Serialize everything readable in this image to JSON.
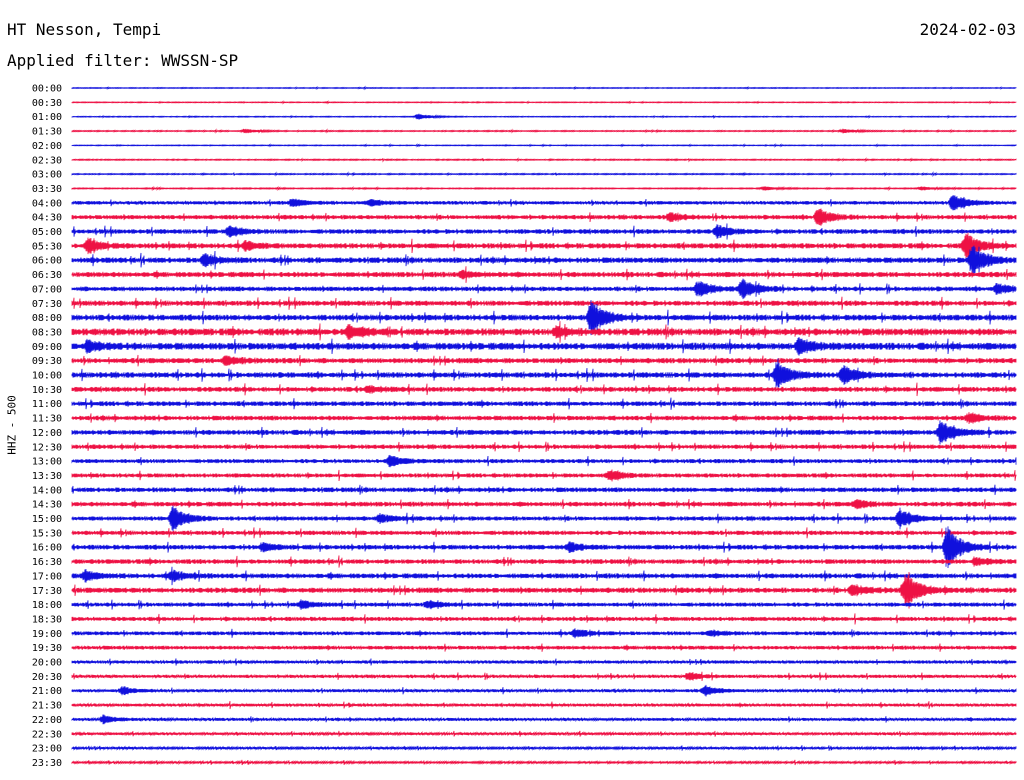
{
  "header": {
    "station": "HT Nesson, Tempi",
    "date": "2024-02-03",
    "filter": "Applied filter: WWSSN-SP"
  },
  "colors": {
    "line_a": "#1010dd",
    "line_b": "#ee1144"
  },
  "chart_data": {
    "type": "line",
    "title": "HT Nesson, Tempi",
    "subtitle": "Applied filter: WWSSN-SP",
    "ylabel": "HHZ - 500",
    "rows": [
      "00:00",
      "00:30",
      "01:00",
      "01:30",
      "02:00",
      "02:30",
      "03:00",
      "03:30",
      "04:00",
      "04:30",
      "05:00",
      "05:30",
      "06:00",
      "06:30",
      "07:00",
      "07:30",
      "08:00",
      "08:30",
      "09:00",
      "09:30",
      "10:00",
      "10:30",
      "11:00",
      "11:30",
      "12:00",
      "12:30",
      "13:00",
      "13:30",
      "14:00",
      "14:30",
      "15:00",
      "15:30",
      "16:00",
      "16:30",
      "17:00",
      "17:30",
      "18:00",
      "18:30",
      "19:00",
      "19:30",
      "20:00",
      "20:30",
      "21:00",
      "21:30",
      "22:00",
      "22:30",
      "23:00",
      "23:30"
    ],
    "row_colors": [
      "blue",
      "red"
    ],
    "noise_level": [
      0.3,
      0.3,
      0.3,
      0.4,
      0.3,
      0.4,
      0.4,
      0.4,
      1.2,
      1.5,
      1.6,
      1.8,
      1.9,
      1.8,
      1.6,
      1.8,
      2.0,
      2.4,
      2.4,
      1.8,
      1.9,
      1.7,
      1.6,
      1.6,
      1.7,
      1.5,
      1.4,
      1.4,
      1.6,
      1.6,
      1.5,
      1.5,
      1.6,
      1.6,
      1.7,
      1.8,
      1.4,
      1.4,
      1.3,
      1.3,
      1.1,
      1.1,
      1.0,
      1.0,
      1.0,
      0.9,
      0.8,
      0.7
    ],
    "events": [
      {
        "row": "01:00",
        "minute": 11,
        "amplitude": 3
      },
      {
        "row": "01:30",
        "minute": 5.5,
        "amplitude": 2
      },
      {
        "row": "01:30",
        "minute": 24.5,
        "amplitude": 2
      },
      {
        "row": "03:30",
        "minute": 22,
        "amplitude": 2
      },
      {
        "row": "03:30",
        "minute": 27,
        "amplitude": 2
      },
      {
        "row": "04:00",
        "minute": 7,
        "amplitude": 4
      },
      {
        "row": "04:00",
        "minute": 9.5,
        "amplitude": 3
      },
      {
        "row": "04:00",
        "minute": 28,
        "amplitude": 9
      },
      {
        "row": "04:30",
        "minute": 19,
        "amplitude": 4
      },
      {
        "row": "04:30",
        "minute": 23.7,
        "amplitude": 9
      },
      {
        "row": "05:00",
        "minute": 5,
        "amplitude": 5
      },
      {
        "row": "05:00",
        "minute": 20.5,
        "amplitude": 6
      },
      {
        "row": "05:30",
        "minute": 0.5,
        "amplitude": 7
      },
      {
        "row": "05:30",
        "minute": 5.5,
        "amplitude": 4
      },
      {
        "row": "05:30",
        "minute": 28.4,
        "amplitude": 14
      },
      {
        "row": "06:00",
        "minute": 4.2,
        "amplitude": 6
      },
      {
        "row": "06:00",
        "minute": 28.6,
        "amplitude": 16
      },
      {
        "row": "06:30",
        "minute": 12.4,
        "amplitude": 4
      },
      {
        "row": "07:00",
        "minute": 19.9,
        "amplitude": 8
      },
      {
        "row": "07:00",
        "minute": 21.3,
        "amplitude": 10
      },
      {
        "row": "07:00",
        "minute": 29.4,
        "amplitude": 5
      },
      {
        "row": "08:00",
        "minute": 16.5,
        "amplitude": 18
      },
      {
        "row": "08:30",
        "minute": 8.8,
        "amplitude": 7
      },
      {
        "row": "08:30",
        "minute": 15.4,
        "amplitude": 5
      },
      {
        "row": "09:00",
        "minute": 0.5,
        "amplitude": 5
      },
      {
        "row": "09:00",
        "minute": 23.1,
        "amplitude": 8
      },
      {
        "row": "09:30",
        "minute": 4.9,
        "amplitude": 5
      },
      {
        "row": "10:00",
        "minute": 22.4,
        "amplitude": 14
      },
      {
        "row": "10:00",
        "minute": 24.5,
        "amplitude": 9
      },
      {
        "row": "10:30",
        "minute": 9.4,
        "amplitude": 3
      },
      {
        "row": "11:30",
        "minute": 28.5,
        "amplitude": 5
      },
      {
        "row": "12:00",
        "minute": 27.6,
        "amplitude": 12
      },
      {
        "row": "13:00",
        "minute": 10.1,
        "amplitude": 6
      },
      {
        "row": "13:30",
        "minute": 17.1,
        "amplitude": 5
      },
      {
        "row": "14:30",
        "minute": 24.9,
        "amplitude": 4
      },
      {
        "row": "15:00",
        "minute": 3.2,
        "amplitude": 12
      },
      {
        "row": "15:00",
        "minute": 9.8,
        "amplitude": 4
      },
      {
        "row": "15:00",
        "minute": 26.3,
        "amplitude": 10
      },
      {
        "row": "16:00",
        "minute": 6.1,
        "amplitude": 4
      },
      {
        "row": "16:00",
        "minute": 15.8,
        "amplitude": 5
      },
      {
        "row": "16:00",
        "minute": 27.8,
        "amplitude": 22
      },
      {
        "row": "16:30",
        "minute": 28.7,
        "amplitude": 4
      },
      {
        "row": "17:00",
        "minute": 0.4,
        "amplitude": 5
      },
      {
        "row": "17:00",
        "minute": 3.2,
        "amplitude": 5
      },
      {
        "row": "17:30",
        "minute": 24.8,
        "amplitude": 5
      },
      {
        "row": "17:30",
        "minute": 26.5,
        "amplitude": 18
      },
      {
        "row": "18:00",
        "minute": 7.3,
        "amplitude": 4
      },
      {
        "row": "18:00",
        "minute": 11.3,
        "amplitude": 4
      },
      {
        "row": "19:00",
        "minute": 16,
        "amplitude": 4
      },
      {
        "row": "19:00",
        "minute": 20.3,
        "amplitude": 3
      },
      {
        "row": "20:30",
        "minute": 19.6,
        "amplitude": 4
      },
      {
        "row": "21:00",
        "minute": 1.6,
        "amplitude": 4
      },
      {
        "row": "21:00",
        "minute": 20.1,
        "amplitude": 5
      },
      {
        "row": "22:00",
        "minute": 1,
        "amplitude": 4
      }
    ]
  }
}
